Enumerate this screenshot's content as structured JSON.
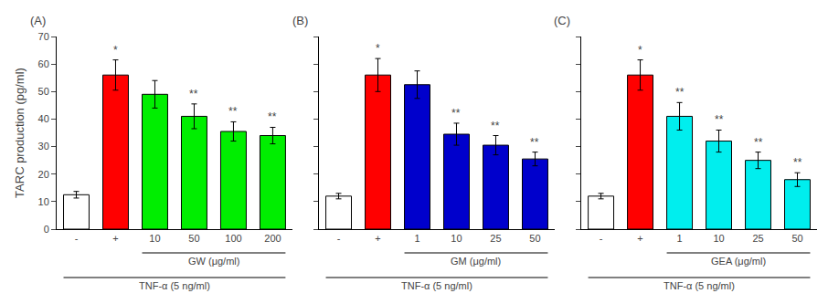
{
  "chart_data": [
    {
      "type": "bar",
      "title": "(A)",
      "categories": [
        "-",
        "+",
        "10",
        "50",
        "100",
        "200"
      ],
      "values": [
        12.5,
        56.0,
        49.0,
        41.0,
        35.5,
        34.0
      ],
      "errors": [
        1.2,
        5.5,
        5.0,
        4.5,
        3.5,
        3.0
      ],
      "colors": [
        "white",
        "#ff0000",
        "#00ee00",
        "#00ee00",
        "#00ee00",
        "#00ee00"
      ],
      "significance": [
        null,
        "*",
        null,
        "**",
        "**",
        "**"
      ],
      "brackets": [
        {
          "text": "GW (μg/ml)",
          "from": "10",
          "to": "200"
        },
        {
          "text": "TNF-α (5 ng/ml)",
          "from": "-",
          "to": "200"
        }
      ],
      "ylabel": "TARC production (pg/ml)",
      "ylim": [
        0,
        70
      ],
      "yticks": [
        0,
        10,
        20,
        30,
        40,
        50,
        60,
        70
      ],
      "grid": false
    },
    {
      "type": "bar",
      "title": "(B)",
      "categories": [
        "-",
        "+",
        "1",
        "10",
        "25",
        "50"
      ],
      "values": [
        12.0,
        56.0,
        52.5,
        34.5,
        30.5,
        25.5
      ],
      "errors": [
        1.0,
        6.0,
        5.0,
        4.0,
        3.5,
        2.5
      ],
      "colors": [
        "white",
        "#ff0000",
        "#0000cc",
        "#0000cc",
        "#0000cc",
        "#0000cc"
      ],
      "significance": [
        null,
        "*",
        null,
        "**",
        "**",
        "**"
      ],
      "brackets": [
        {
          "text": "GM (μg/ml)",
          "from": "1",
          "to": "50"
        },
        {
          "text": "TNF-α (5 ng/ml)",
          "from": "-",
          "to": "50"
        }
      ],
      "ylim": [
        0,
        70
      ],
      "yticks": [
        0,
        10,
        20,
        30,
        40,
        50,
        60,
        70
      ],
      "grid": false,
      "tick_labels": "x"
    },
    {
      "type": "bar",
      "title": "(C)",
      "categories": [
        "-",
        "+",
        "1",
        "10",
        "25",
        "50"
      ],
      "values": [
        12.0,
        56.0,
        41.0,
        32.0,
        25.0,
        18.0
      ],
      "errors": [
        1.0,
        5.5,
        5.0,
        4.0,
        3.0,
        2.5
      ],
      "colors": [
        "white",
        "#ff0000",
        "#00eeee",
        "#00eeee",
        "#00eeee",
        "#00eeee"
      ],
      "significance": [
        null,
        "*",
        "**",
        "**",
        "**",
        "**"
      ],
      "brackets": [
        {
          "text": "GEA (μg/ml)",
          "from": "1",
          "to": "50"
        },
        {
          "text": "TNF-α (5 ng/ml)",
          "from": "-",
          "to": "50"
        }
      ],
      "ylim": [
        0,
        70
      ],
      "yticks": [
        0,
        10,
        20,
        30,
        40,
        50,
        60,
        70
      ],
      "grid": false,
      "tick_labels": "x"
    }
  ]
}
